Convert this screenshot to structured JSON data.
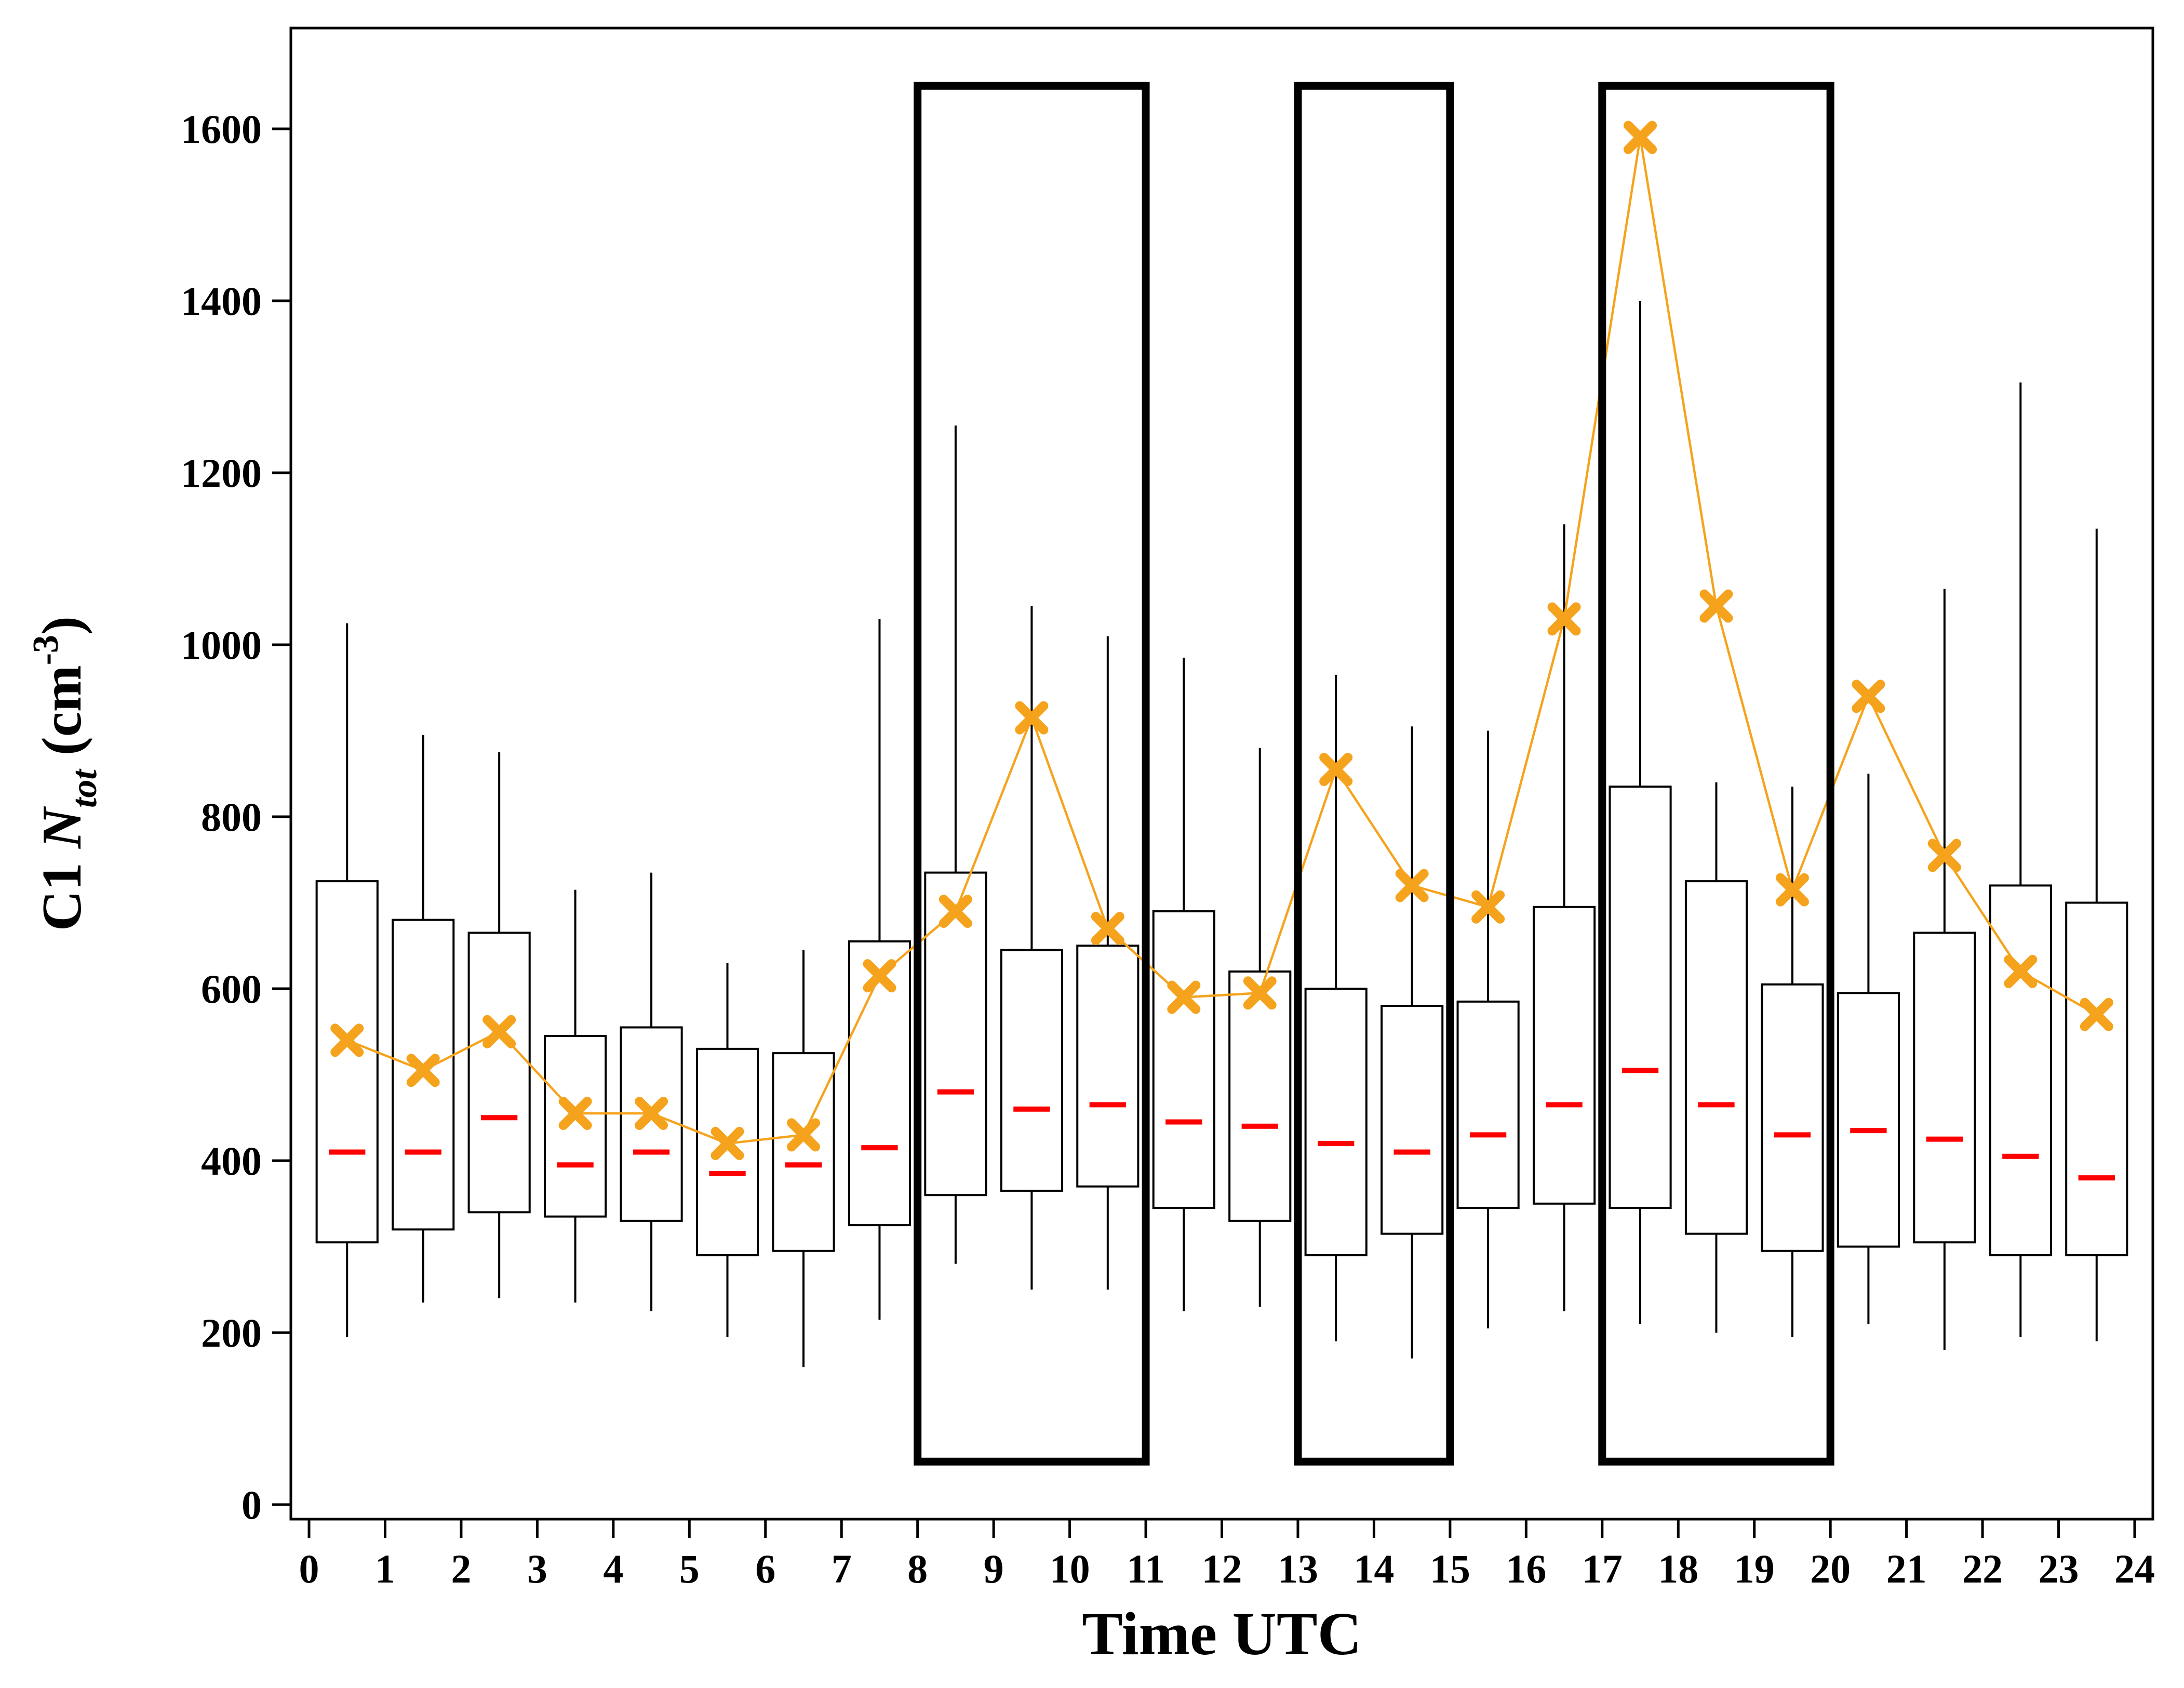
{
  "figure": {
    "background": "#ffffff"
  },
  "chart_data": {
    "type": "box",
    "title": "",
    "xlabel": "Time UTC",
    "ylabel_text": "C1 N_tot (cm^-3)",
    "ylabel_parts": [
      {
        "text": "C1 ",
        "kind": "normal"
      },
      {
        "text": "N",
        "kind": "italic"
      },
      {
        "text": "tot",
        "kind": "sub"
      },
      {
        "text": " (cm",
        "kind": "normal"
      },
      {
        "text": "-3",
        "kind": "sup"
      },
      {
        "text": ")",
        "kind": "normal"
      }
    ],
    "xlim": [
      0,
      24
    ],
    "ylim": [
      0,
      1717
    ],
    "grid": false,
    "legend": "none",
    "x_ticks": [
      0,
      1,
      2,
      3,
      4,
      5,
      6,
      7,
      8,
      9,
      10,
      11,
      12,
      13,
      14,
      15,
      16,
      17,
      18,
      19,
      20,
      21,
      22,
      23,
      24
    ],
    "y_ticks": [
      0,
      200,
      400,
      600,
      800,
      1000,
      1200,
      1400,
      1600
    ],
    "boxes": [
      {
        "x": 0.5,
        "low": 195,
        "q1": 305,
        "median": 410,
        "q3": 725,
        "high": 1025,
        "mean": 540
      },
      {
        "x": 1.5,
        "low": 235,
        "q1": 320,
        "median": 410,
        "q3": 680,
        "high": 895,
        "mean": 505
      },
      {
        "x": 2.5,
        "low": 240,
        "q1": 340,
        "median": 450,
        "q3": 665,
        "high": 875,
        "mean": 550
      },
      {
        "x": 3.5,
        "low": 235,
        "q1": 335,
        "median": 395,
        "q3": 545,
        "high": 715,
        "mean": 455
      },
      {
        "x": 4.5,
        "low": 225,
        "q1": 330,
        "median": 410,
        "q3": 555,
        "high": 735,
        "mean": 455
      },
      {
        "x": 5.5,
        "low": 195,
        "q1": 290,
        "median": 385,
        "q3": 530,
        "high": 630,
        "mean": 420
      },
      {
        "x": 6.5,
        "low": 160,
        "q1": 295,
        "median": 395,
        "q3": 525,
        "high": 645,
        "mean": 430
      },
      {
        "x": 7.5,
        "low": 215,
        "q1": 325,
        "median": 415,
        "q3": 655,
        "high": 1030,
        "mean": 615
      },
      {
        "x": 8.5,
        "low": 280,
        "q1": 360,
        "median": 480,
        "q3": 735,
        "high": 1255,
        "mean": 690
      },
      {
        "x": 9.5,
        "low": 250,
        "q1": 365,
        "median": 460,
        "q3": 645,
        "high": 1045,
        "mean": 915
      },
      {
        "x": 10.5,
        "low": 250,
        "q1": 370,
        "median": 465,
        "q3": 650,
        "high": 1010,
        "mean": 670
      },
      {
        "x": 11.5,
        "low": 225,
        "q1": 345,
        "median": 445,
        "q3": 690,
        "high": 985,
        "mean": 590
      },
      {
        "x": 12.5,
        "low": 230,
        "q1": 330,
        "median": 440,
        "q3": 620,
        "high": 880,
        "mean": 595
      },
      {
        "x": 13.5,
        "low": 190,
        "q1": 290,
        "median": 420,
        "q3": 600,
        "high": 965,
        "mean": 855
      },
      {
        "x": 14.5,
        "low": 170,
        "q1": 315,
        "median": 410,
        "q3": 580,
        "high": 905,
        "mean": 720
      },
      {
        "x": 15.5,
        "low": 205,
        "q1": 345,
        "median": 430,
        "q3": 585,
        "high": 900,
        "mean": 695
      },
      {
        "x": 16.5,
        "low": 225,
        "q1": 350,
        "median": 465,
        "q3": 695,
        "high": 1140,
        "mean": 1030
      },
      {
        "x": 17.5,
        "low": 210,
        "q1": 345,
        "median": 505,
        "q3": 835,
        "high": 1400,
        "mean": 1590
      },
      {
        "x": 18.5,
        "low": 200,
        "q1": 315,
        "median": 465,
        "q3": 725,
        "high": 840,
        "mean": 1045
      },
      {
        "x": 19.5,
        "low": 195,
        "q1": 295,
        "median": 430,
        "q3": 605,
        "high": 835,
        "mean": 715
      },
      {
        "x": 20.5,
        "low": 210,
        "q1": 300,
        "median": 435,
        "q3": 595,
        "high": 850,
        "mean": 940
      },
      {
        "x": 21.5,
        "low": 180,
        "q1": 305,
        "median": 425,
        "q3": 665,
        "high": 1065,
        "mean": 755
      },
      {
        "x": 22.5,
        "low": 195,
        "q1": 290,
        "median": 405,
        "q3": 720,
        "high": 1305,
        "mean": 620
      },
      {
        "x": 23.5,
        "low": 190,
        "q1": 290,
        "median": 380,
        "q3": 700,
        "high": 1135,
        "mean": 570
      }
    ],
    "highlight_regions": [
      {
        "x0": 8,
        "x1": 11,
        "y0": 50,
        "y1": 1650
      },
      {
        "x0": 13,
        "x1": 15,
        "y0": 50,
        "y1": 1650
      },
      {
        "x0": 17,
        "x1": 20,
        "y0": 50,
        "y1": 1650
      }
    ],
    "colors": {
      "median": "#ff0000",
      "mean_marker": "#f5a31d",
      "mean_line": "#f5a31d",
      "box_stroke": "#000000",
      "box_fill": "#ffffff",
      "highlight_stroke": "#000000",
      "axis": "#000000"
    }
  }
}
